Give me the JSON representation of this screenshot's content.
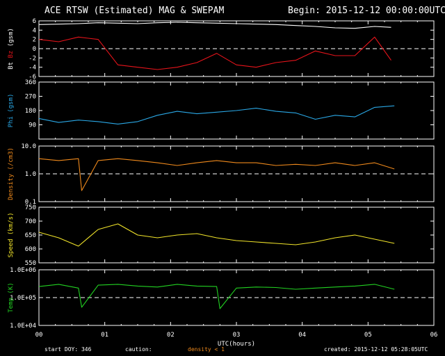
{
  "header": {
    "title": "ACE RTSW (Estimated) MAG & SWEPAM",
    "begin": "Begin: 2015-12-12 00:00:00UTC"
  },
  "footer": {
    "start_doy": "start DOY: 346",
    "caution": "caution:",
    "density_note": "density < 1",
    "created": "created: 2015-12-12 05:28:05UTC"
  },
  "colors": {
    "background": "#000000",
    "axes": "#ffffff",
    "bt": "#ffffff",
    "bz": "#e8141b",
    "phi": "#2aa8e6",
    "density": "#f08a1c",
    "speed": "#f2e52a",
    "temp": "#22d322",
    "caution": "#f08a1c"
  },
  "chart_data": [
    {
      "type": "line",
      "panel": "mag",
      "ylabel_parts": [
        "Bt",
        "Bz",
        "(gsm)"
      ],
      "ylim": [
        -6,
        6
      ],
      "yticks": [
        "-6",
        "-4",
        "-2",
        "0",
        "2",
        "4",
        "6"
      ],
      "reference_line": 0,
      "x_hours": [
        0,
        0.3,
        0.6,
        0.9,
        1.2,
        1.5,
        1.8,
        2.1,
        2.4,
        2.7,
        3.0,
        3.3,
        3.6,
        3.9,
        4.2,
        4.5,
        4.8,
        5.1,
        5.35
      ],
      "series": [
        {
          "name": "Bt",
          "values": [
            5.2,
            5.3,
            5.4,
            5.6,
            5.5,
            5.4,
            5.6,
            5.7,
            5.6,
            5.5,
            5.4,
            5.3,
            5.2,
            5.0,
            4.8,
            4.5,
            4.4,
            4.8,
            4.6
          ]
        },
        {
          "name": "Bz",
          "values": [
            2.0,
            1.5,
            2.5,
            2.0,
            -3.5,
            -4.0,
            -4.5,
            -4.0,
            -3.0,
            -1.0,
            -3.5,
            -4.0,
            -3.0,
            -2.5,
            -0.5,
            -1.5,
            -1.5,
            2.5,
            -2.5
          ]
        }
      ]
    },
    {
      "type": "line",
      "panel": "phi",
      "ylabel": "Phi (gsm)",
      "ylim": [
        0,
        360
      ],
      "yticks": [
        "90",
        "180",
        "270",
        "360"
      ],
      "x_hours": [
        0,
        0.3,
        0.6,
        0.9,
        1.2,
        1.5,
        1.8,
        2.1,
        2.4,
        2.7,
        3.0,
        3.3,
        3.6,
        3.9,
        4.2,
        4.5,
        4.8,
        5.1,
        5.4
      ],
      "series": [
        {
          "name": "Phi",
          "values": [
            130,
            105,
            120,
            110,
            95,
            110,
            150,
            175,
            160,
            170,
            180,
            195,
            175,
            165,
            125,
            150,
            140,
            200,
            210
          ]
        }
      ]
    },
    {
      "type": "line",
      "panel": "density",
      "ylabel": "Density (/cm3)",
      "yscale": "log",
      "ylim": [
        0.1,
        10
      ],
      "yticks": [
        "0.1",
        "1.0",
        "10.0"
      ],
      "reference_line": 1.0,
      "x_hours": [
        0,
        0.3,
        0.6,
        0.65,
        0.9,
        1.2,
        1.5,
        1.8,
        2.1,
        2.4,
        2.7,
        3.0,
        3.3,
        3.6,
        3.9,
        4.2,
        4.5,
        4.8,
        5.1,
        5.4
      ],
      "series": [
        {
          "name": "Density",
          "values": [
            3.5,
            3.0,
            3.5,
            0.25,
            3.0,
            3.5,
            3.0,
            2.5,
            2.0,
            2.5,
            3.0,
            2.5,
            2.5,
            2.0,
            2.2,
            2.0,
            2.5,
            2.0,
            2.5,
            1.5
          ]
        }
      ]
    },
    {
      "type": "line",
      "panel": "speed",
      "ylabel": "Speed (km/s)",
      "ylim": [
        550,
        750
      ],
      "yticks": [
        "550",
        "600",
        "650",
        "700",
        "750"
      ],
      "x_hours": [
        0,
        0.3,
        0.6,
        0.9,
        1.2,
        1.5,
        1.8,
        2.1,
        2.4,
        2.7,
        3.0,
        3.3,
        3.6,
        3.9,
        4.2,
        4.5,
        4.8,
        5.1,
        5.4
      ],
      "series": [
        {
          "name": "Speed",
          "values": [
            660,
            640,
            610,
            670,
            690,
            650,
            640,
            650,
            655,
            640,
            630,
            625,
            620,
            615,
            625,
            640,
            650,
            635,
            620
          ]
        }
      ]
    },
    {
      "type": "line",
      "panel": "temp",
      "ylabel": "Temp (K)",
      "yscale": "log",
      "ylim": [
        10000,
        1000000
      ],
      "yticks": [
        "1.0E+04",
        "1.0E+05",
        "1.0E+06"
      ],
      "reference_line": 100000,
      "x_hours": [
        0,
        0.3,
        0.6,
        0.65,
        0.9,
        1.2,
        1.5,
        1.8,
        2.1,
        2.4,
        2.7,
        2.75,
        3.0,
        3.3,
        3.6,
        3.9,
        4.2,
        4.5,
        4.8,
        5.1,
        5.4
      ],
      "series": [
        {
          "name": "Temp",
          "values": [
            250000,
            300000,
            220000,
            45000,
            280000,
            300000,
            260000,
            240000,
            300000,
            260000,
            250000,
            40000,
            220000,
            240000,
            230000,
            200000,
            220000,
            240000,
            260000,
            300000,
            200000
          ]
        }
      ]
    },
    {
      "type": "axis",
      "panel": "time",
      "xlabel": "UTC(hours)",
      "xlim": [
        0,
        6
      ],
      "xticks": [
        "00",
        "01",
        "02",
        "03",
        "04",
        "05",
        "06"
      ]
    }
  ]
}
